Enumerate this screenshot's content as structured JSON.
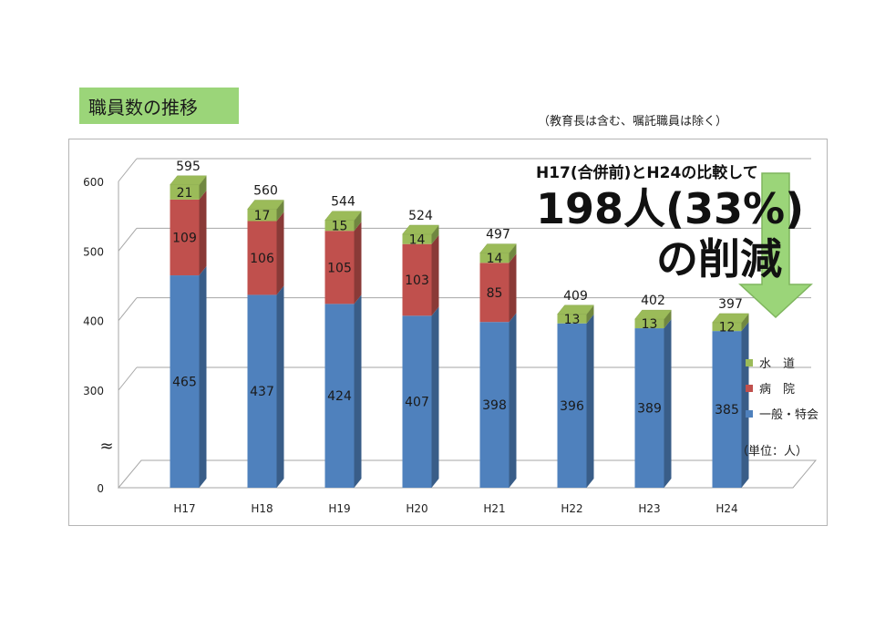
{
  "header": {
    "title": "職員数の推移",
    "note": "（教育長は含む、嘱託職員は除く）"
  },
  "chart_data": {
    "type": "bar",
    "stacked": true,
    "categories": [
      "H17",
      "H18",
      "H19",
      "H20",
      "H21",
      "H22",
      "H23",
      "H24"
    ],
    "series": [
      {
        "name": "一般・特会",
        "color": "#4f81bd",
        "values": [
          465,
          437,
          424,
          407,
          398,
          396,
          389,
          385
        ]
      },
      {
        "name": "病　院",
        "color": "#c0504d",
        "values": [
          109,
          106,
          105,
          103,
          85,
          null,
          null,
          null
        ]
      },
      {
        "name": "水　道",
        "color": "#9bbb59",
        "values": [
          21,
          17,
          15,
          14,
          14,
          13,
          13,
          12
        ]
      }
    ],
    "totals": [
      595,
      560,
      544,
      524,
      497,
      409,
      402,
      397
    ],
    "y_ticks": [
      "0",
      "300",
      "400",
      "500",
      "600"
    ],
    "axis_break_symbol": "≈",
    "ylim": [
      0,
      600
    ],
    "axis_break": true,
    "grid": true,
    "legend_position": "right",
    "unit_label": "（単位：人）",
    "annotation": {
      "line1": "H17(合併前)とH24の比較して",
      "line2": "198人(33%)",
      "line3": "の削減"
    },
    "colors": {
      "arrow": "#9bd579",
      "grid": "#a6a6a6"
    }
  }
}
